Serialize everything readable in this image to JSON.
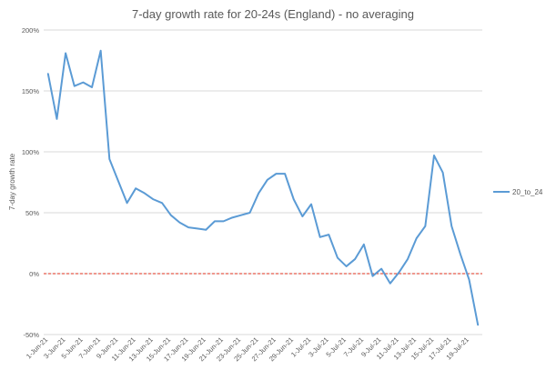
{
  "chart_data": {
    "type": "line",
    "title": "7-day growth rate for 20-24s (England) - no averaging",
    "xlabel": "",
    "ylabel": "7-day growth rate",
    "ylim": [
      -0.5,
      2.0
    ],
    "yticks": [
      {
        "value": 2.0,
        "label": "200%"
      },
      {
        "value": 1.5,
        "label": "150%"
      },
      {
        "value": 1.0,
        "label": "100%"
      },
      {
        "value": 0.5,
        "label": "50%"
      },
      {
        "value": 0.0,
        "label": "0%"
      },
      {
        "value": -0.5,
        "label": "-50%"
      }
    ],
    "grid": true,
    "legend_position": "right",
    "x": [
      "1-Jun-21",
      "2-Jun-21",
      "3-Jun-21",
      "4-Jun-21",
      "5-Jun-21",
      "6-Jun-21",
      "7-Jun-21",
      "8-Jun-21",
      "9-Jun-21",
      "10-Jun-21",
      "11-Jun-21",
      "12-Jun-21",
      "13-Jun-21",
      "14-Jun-21",
      "15-Jun-21",
      "16-Jun-21",
      "17-Jun-21",
      "18-Jun-21",
      "19-Jun-21",
      "20-Jun-21",
      "21-Jun-21",
      "22-Jun-21",
      "23-Jun-21",
      "24-Jun-21",
      "25-Jun-21",
      "26-Jun-21",
      "27-Jun-21",
      "28-Jun-21",
      "29-Jun-21",
      "30-Jun-21",
      "1-Jul-21",
      "2-Jul-21",
      "3-Jul-21",
      "4-Jul-21",
      "5-Jul-21",
      "6-Jul-21",
      "7-Jul-21",
      "8-Jul-21",
      "9-Jul-21",
      "10-Jul-21",
      "11-Jul-21",
      "12-Jul-21",
      "13-Jul-21",
      "14-Jul-21",
      "15-Jul-21",
      "16-Jul-21",
      "17-Jul-21",
      "18-Jul-21",
      "19-Jul-21",
      "20-Jul-21"
    ],
    "x_tick_labels": [
      "1-Jun-21",
      "3-Jun-21",
      "5-Jun-21",
      "7-Jun-21",
      "9-Jun-21",
      "11-Jun-21",
      "13-Jun-21",
      "15-Jun-21",
      "17-Jun-21",
      "19-Jun-21",
      "21-Jun-21",
      "23-Jun-21",
      "25-Jun-21",
      "27-Jun-21",
      "29-Jun-21",
      "1-Jul-21",
      "3-Jul-21",
      "5-Jul-21",
      "7-Jul-21",
      "9-Jul-21",
      "11-Jul-21",
      "13-Jul-21",
      "15-Jul-21",
      "17-Jul-21",
      "19-Jul-21"
    ],
    "series": [
      {
        "name": "20_to_24",
        "color": "#5b9bd5",
        "values": [
          1.64,
          1.27,
          1.81,
          1.54,
          1.57,
          1.53,
          1.83,
          0.94,
          0.76,
          0.58,
          0.7,
          0.66,
          0.61,
          0.58,
          0.48,
          0.42,
          0.38,
          0.37,
          0.36,
          0.43,
          0.43,
          0.46,
          0.48,
          0.5,
          0.66,
          0.77,
          0.82,
          0.82,
          0.61,
          0.47,
          0.57,
          0.3,
          0.32,
          0.13,
          0.06,
          0.12,
          0.24,
          -0.02,
          0.04,
          -0.08,
          0.01,
          0.12,
          0.29,
          0.39,
          0.97,
          0.83,
          0.39,
          0.16,
          -0.05,
          -0.42
        ]
      }
    ],
    "reference_line": {
      "value": 0.0,
      "color": "#e0301e",
      "style": "dashed"
    }
  }
}
